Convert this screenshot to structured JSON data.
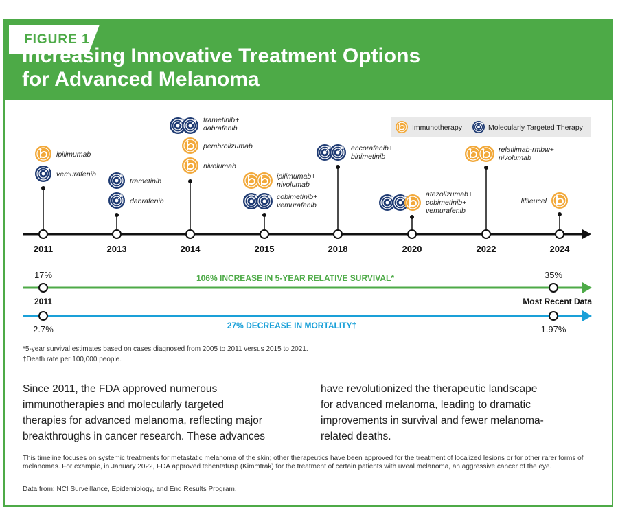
{
  "header": {
    "figure_label": "FIGURE 1",
    "title_line1": "Increasing Innovative Treatment Options",
    "title_line2": "for Advanced Melanoma"
  },
  "legend": {
    "immunotherapy": "Immunotherapy",
    "targeted": "Molecularly Targeted Therapy"
  },
  "colors": {
    "green": "#4daa47",
    "blue": "#1aa0d8",
    "navy": "#1f3b73",
    "orange": "#f2a93b"
  },
  "timeline": {
    "years": [
      "2011",
      "2013",
      "2014",
      "2015",
      "2018",
      "2020",
      "2022",
      "2024"
    ],
    "approvals": {
      "y2011": [
        "ipilimumab",
        "vemurafenib"
      ],
      "y2013": [
        "trametinib",
        "dabrafenib"
      ],
      "y2014": [
        "trametinib+",
        "dabrafenib",
        "pembrolizumab",
        "nivolumab"
      ],
      "y2015": [
        "ipilimumab+",
        "nivolumab",
        "cobimetinib+",
        "vemurafenib"
      ],
      "y2018": [
        "encorafenib+",
        "binimetinib"
      ],
      "y2020": [
        "atezolizumab+",
        "cobimetinib+",
        "vemurafenib"
      ],
      "y2022": [
        "relatlimab-rmbw+",
        "nivolumab"
      ],
      "y2024": [
        "lifileucel"
      ]
    }
  },
  "survival": {
    "start_value": "17%",
    "end_value": "35%",
    "label": "106% INCREASE IN 5-YEAR RELATIVE SURVIVAL*",
    "start_label": "2011",
    "end_label": "Most Recent Data"
  },
  "mortality": {
    "start_value": "2.7%",
    "end_value": "1.97%",
    "label": "27% DECREASE IN MORTALITY†"
  },
  "footnotes": {
    "f1": "*5-year survival estimates based on cases diagnosed from 2005 to 2011 versus 2015 to 2021.",
    "f2": "†Death rate per 100,000 people."
  },
  "body": {
    "col1_l1": "Since 2011, the FDA approved numerous",
    "col1_l2": "immunotherapies and molecularly targeted",
    "col1_l3": "therapies for advanced melanoma, reflecting major",
    "col1_l4": "breakthroughs in cancer research. These advances",
    "col2_l1": "have revolutionized the therapeutic landscape",
    "col2_l2": "for advanced melanoma, leading to dramatic",
    "col2_l3": "improvements in survival and fewer melanoma-",
    "col2_l4": "related deaths."
  },
  "note": "This timeline focuses on systemic treatments for metastatic melanoma of the skin; other therapeutics have been approved for the treatment of localized lesions or for other rarer forms of melanomas. For example, in January 2022, FDA approved tebentafusp (Kimmtrak) for the treatment of certain patients with uveal melanoma, an aggressive cancer of the eye.",
  "source": "Data from: NCI Surveillance, Epidemiology, and End Results Program."
}
